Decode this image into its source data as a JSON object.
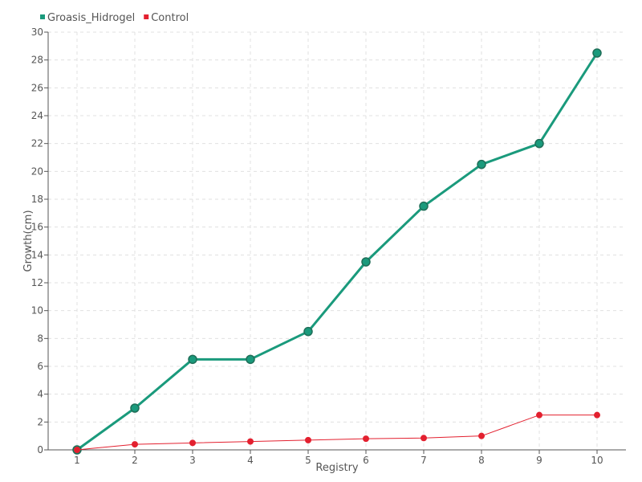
{
  "chart_data": {
    "type": "line",
    "title": "",
    "xlabel": "Registry",
    "ylabel": "Growth(cm)",
    "x": [
      1,
      2,
      3,
      4,
      5,
      6,
      7,
      8,
      9,
      10
    ],
    "ylim": [
      0,
      30
    ],
    "yticks": [
      0,
      2,
      4,
      6,
      8,
      10,
      12,
      14,
      16,
      18,
      20,
      22,
      24,
      26,
      28,
      30
    ],
    "grid": true,
    "legend_position": "top-left",
    "series": [
      {
        "name": "Groasis_Hidrogel",
        "color": "#1a9a7c",
        "values": [
          0,
          3,
          6.5,
          6.5,
          8.5,
          13.5,
          17.5,
          20.5,
          22,
          28.5
        ]
      },
      {
        "name": "Control",
        "color": "#e3202f",
        "values": [
          0,
          0.4,
          0.5,
          0.6,
          0.7,
          0.8,
          0.85,
          1.0,
          2.5,
          2.5
        ]
      }
    ]
  }
}
